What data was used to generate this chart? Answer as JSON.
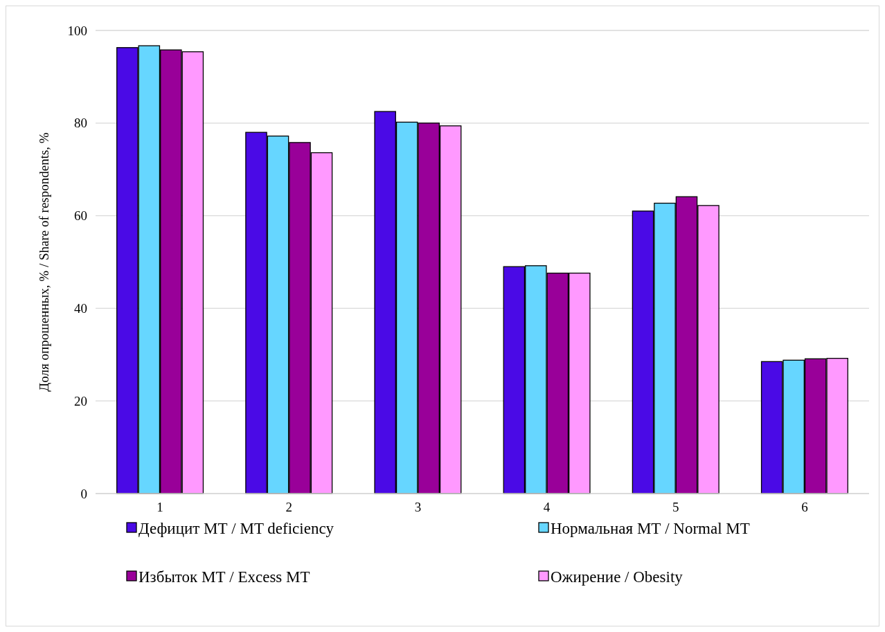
{
  "chart_data": {
    "type": "bar",
    "ylabel": "Доля опрошенных, % / Share of respondents, %",
    "categories": [
      "1",
      "2",
      "3",
      "4",
      "5",
      "6"
    ],
    "series": [
      {
        "name": "Дефицит МТ / MT deficiency",
        "color": "#4a0ae6",
        "values": [
          96.3,
          78.0,
          82.5,
          49.0,
          61.0,
          28.5
        ]
      },
      {
        "name": "Нормальная МТ / Normal MT",
        "color": "#66d6ff",
        "values": [
          96.7,
          77.2,
          80.2,
          49.2,
          62.7,
          28.8
        ]
      },
      {
        "name": "Избыток МТ / Excess MT",
        "color": "#990099",
        "values": [
          95.8,
          75.8,
          80.0,
          47.6,
          64.1,
          29.1
        ]
      },
      {
        "name": "Ожирение / Obesity",
        "color": "#ff99ff",
        "values": [
          95.4,
          73.6,
          79.4,
          47.6,
          62.2,
          29.2
        ]
      }
    ],
    "ylim": [
      0,
      100
    ],
    "yticks": [
      0,
      20,
      40,
      60,
      80,
      100
    ],
    "grid": "y",
    "legend": "bottom"
  }
}
